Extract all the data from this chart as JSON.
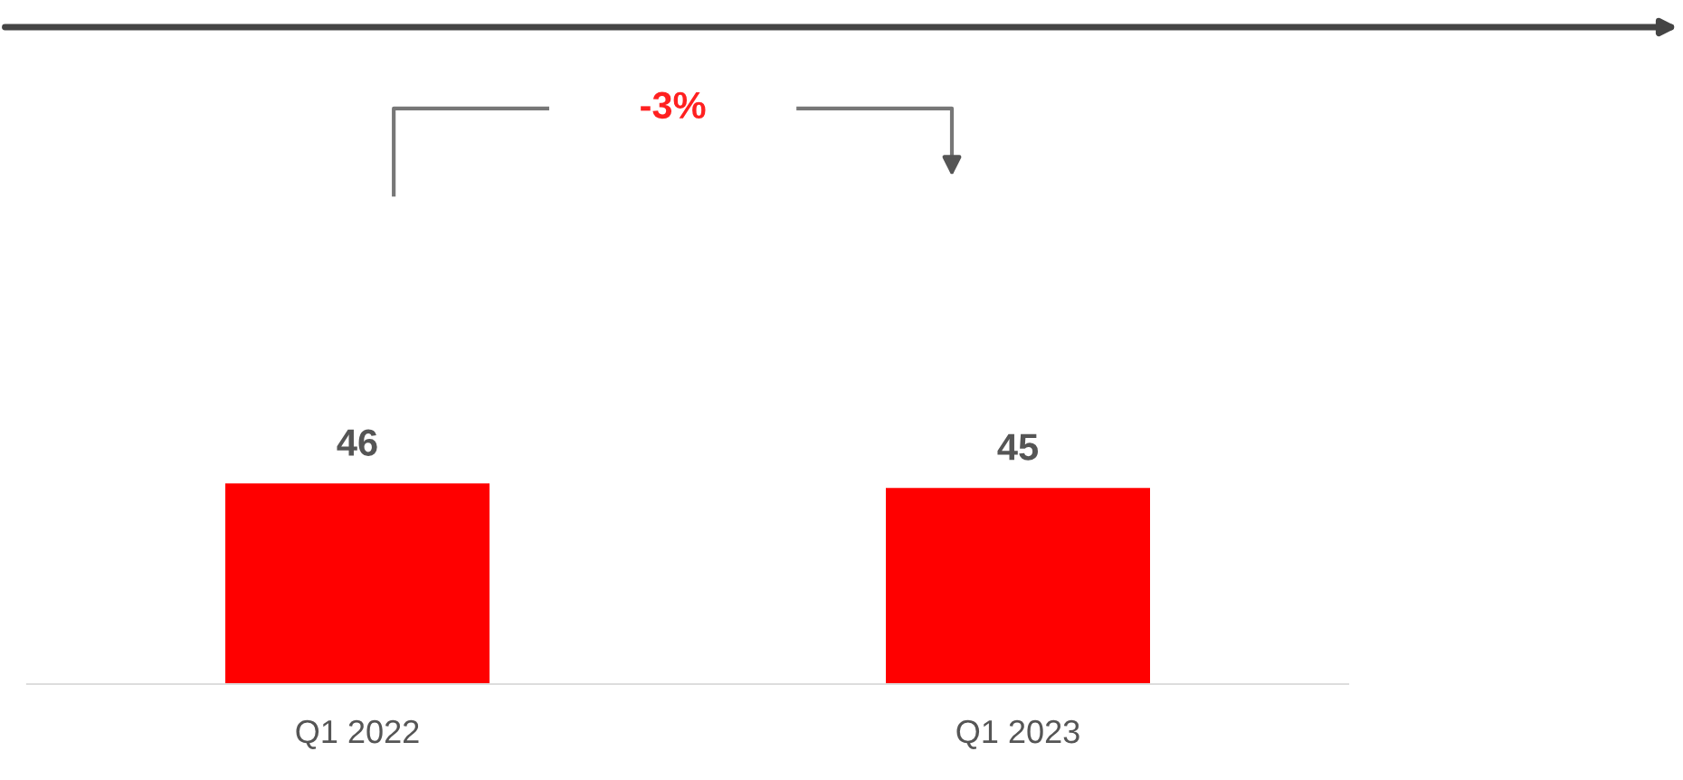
{
  "chart_data": {
    "type": "bar",
    "categories": [
      "Q1 2022",
      "Q1 2023"
    ],
    "values": [
      46,
      45
    ],
    "color": "#ff0000",
    "data_labels": true,
    "annotations": [
      "-3%"
    ],
    "grid": false,
    "legend": false
  }
}
